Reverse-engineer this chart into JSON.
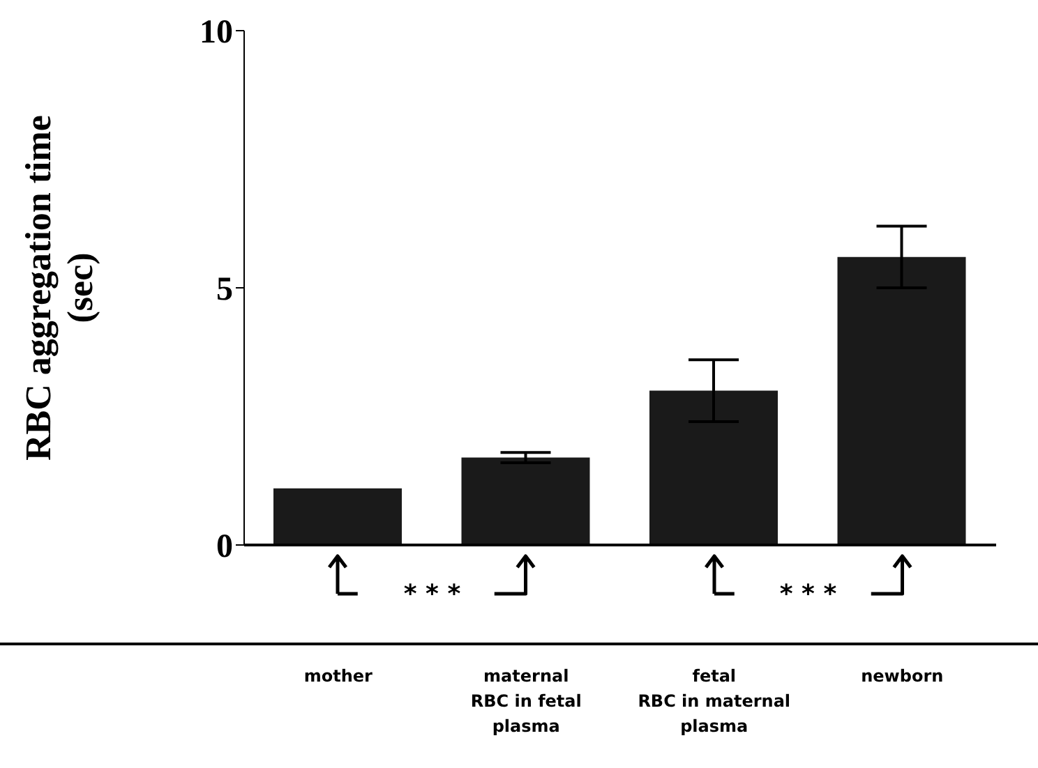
{
  "chart_data": {
    "type": "bar",
    "ylabel": "RBC aggregation time (sec)",
    "categories": [
      "mother",
      "maternal\nRBC in fetal\nplasma",
      "fetal\nRBC in maternal\nplasma",
      "newborn"
    ],
    "values": [
      1.1,
      1.7,
      3.0,
      5.6
    ],
    "errors": [
      null,
      0.1,
      0.6,
      0.6
    ],
    "color": "#1a1a1a",
    "ylim": [
      0,
      10
    ],
    "yticks": [
      0,
      5,
      10
    ],
    "grid": false,
    "annotations": [
      "* * *",
      "* * *"
    ]
  }
}
